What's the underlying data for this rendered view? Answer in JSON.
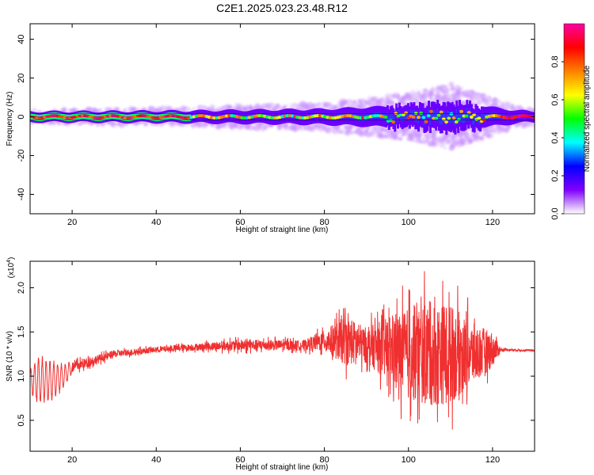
{
  "title": "C2E1.2025.023.23.48.R12",
  "chart_data": [
    {
      "type": "heatmap",
      "xlabel": "Height of straight line (km)",
      "ylabel": "Frequency (Hz)",
      "xlim": [
        10,
        130
      ],
      "ylim": [
        -50,
        48
      ],
      "xticks": [
        20,
        40,
        60,
        80,
        100,
        120
      ],
      "yticks": [
        -40,
        -20,
        0,
        20,
        40
      ],
      "colorbar": {
        "label": "Normalized spectral amplitude",
        "ticks": [
          0.0,
          0.2,
          0.4,
          0.6,
          0.8
        ],
        "range": [
          0,
          1
        ],
        "colors": [
          "#ffffff",
          "#8000ff",
          "#0000ff",
          "#00ffff",
          "#00ff00",
          "#ffff00",
          "#ff8000",
          "#ff0000",
          "#ff00a0"
        ]
      },
      "ridge": {
        "description": "band centered near 0 Hz",
        "spread_by_height": [
          {
            "x": 10,
            "spread": 3
          },
          {
            "x": 45,
            "spread": 4
          },
          {
            "x": 80,
            "spread": 6
          },
          {
            "x": 100,
            "spread": 10
          },
          {
            "x": 110,
            "spread": 14
          },
          {
            "x": 125,
            "spread": 5
          },
          {
            "x": 130,
            "spread": 3
          }
        ]
      }
    },
    {
      "type": "line",
      "xlabel": "Height of straight line (km)",
      "ylabel": "SNR (10 * v/v)",
      "scale_label": "(x10",
      "scale_exp": "4",
      "scale_close": ")",
      "xlim": [
        10,
        130
      ],
      "ylim": [
        0.15,
        2.3
      ],
      "xticks": [
        20,
        40,
        60,
        80,
        100,
        120
      ],
      "yticks": [
        0.5,
        1.0,
        1.5,
        2.0
      ],
      "color": "#f03030",
      "envelope": [
        {
          "x": 10,
          "mean": 0.95,
          "amp": 0.15
        },
        {
          "x": 12,
          "mean": 0.95,
          "amp": 0.3
        },
        {
          "x": 15,
          "mean": 0.95,
          "amp": 0.25
        },
        {
          "x": 18,
          "mean": 1.0,
          "amp": 0.15
        },
        {
          "x": 20,
          "mean": 1.1,
          "amp": 0.08
        },
        {
          "x": 30,
          "mean": 1.25,
          "amp": 0.05
        },
        {
          "x": 40,
          "mean": 1.3,
          "amp": 0.04
        },
        {
          "x": 50,
          "mean": 1.33,
          "amp": 0.05
        },
        {
          "x": 60,
          "mean": 1.35,
          "amp": 0.08
        },
        {
          "x": 75,
          "mean": 1.35,
          "amp": 0.07
        },
        {
          "x": 80,
          "mean": 1.4,
          "amp": 0.15
        },
        {
          "x": 85,
          "mean": 1.4,
          "amp": 0.35
        },
        {
          "x": 90,
          "mean": 1.35,
          "amp": 0.25
        },
        {
          "x": 95,
          "mean": 1.3,
          "amp": 0.45
        },
        {
          "x": 100,
          "mean": 1.25,
          "amp": 0.65
        },
        {
          "x": 105,
          "mean": 1.25,
          "amp": 0.75
        },
        {
          "x": 110,
          "mean": 1.25,
          "amp": 0.7
        },
        {
          "x": 115,
          "mean": 1.25,
          "amp": 0.45
        },
        {
          "x": 120,
          "mean": 1.3,
          "amp": 0.25
        },
        {
          "x": 122,
          "mean": 1.3,
          "amp": 0.02
        },
        {
          "x": 130,
          "mean": 1.29,
          "amp": 0.01
        }
      ]
    }
  ]
}
